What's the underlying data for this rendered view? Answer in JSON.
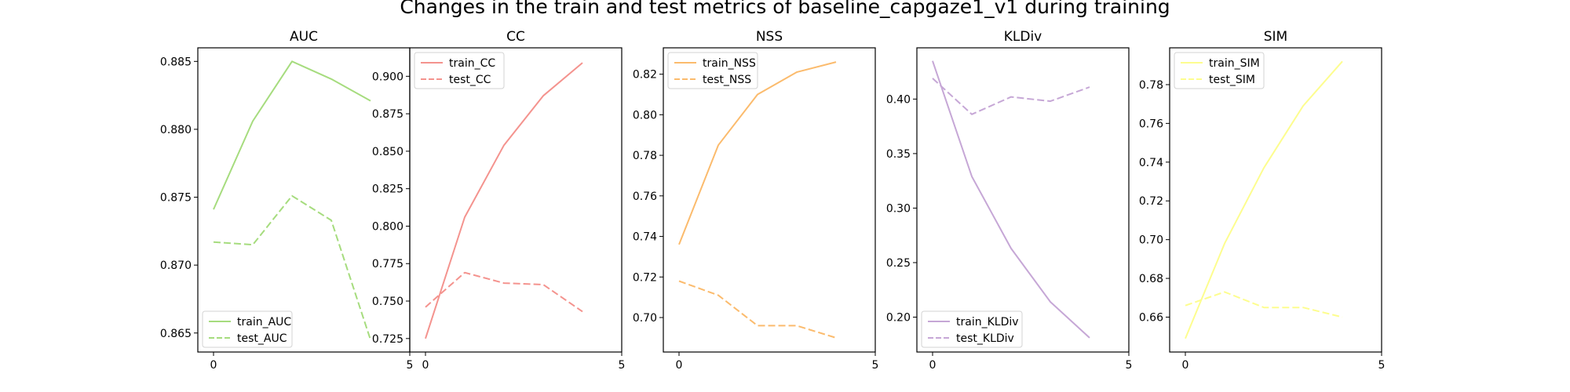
{
  "figure": {
    "title": "Changes in the train and test metrics of baseline_capgaze1_v1 during training"
  },
  "chart_data": [
    {
      "type": "line",
      "title": "AUC",
      "xlim": [
        -0.4,
        5
      ],
      "ylim": [
        0.8636,
        0.886
      ],
      "xticks": [
        0,
        5
      ],
      "yticks": [
        0.865,
        0.87,
        0.875,
        0.88,
        0.885
      ],
      "ytick_labels": [
        "0.865",
        "0.870",
        "0.875",
        "0.880",
        "0.885"
      ],
      "legend_position": "lower-left",
      "x": [
        0,
        1,
        2,
        3,
        4
      ],
      "series": [
        {
          "name": "train_AUC",
          "color": "#a6dc7e",
          "dash": "solid",
          "values": [
            0.8741,
            0.8806,
            0.885,
            0.8837,
            0.8821
          ]
        },
        {
          "name": "test_AUC",
          "color": "#a6dc7e",
          "dash": "dashed",
          "values": [
            0.8717,
            0.8715,
            0.8751,
            0.8733,
            0.8645
          ]
        }
      ]
    },
    {
      "type": "line",
      "title": "CC",
      "xlim": [
        -0.4,
        5
      ],
      "ylim": [
        0.716,
        0.919
      ],
      "xticks": [
        0,
        5
      ],
      "yticks": [
        0.725,
        0.75,
        0.775,
        0.8,
        0.825,
        0.85,
        0.875,
        0.9
      ],
      "ytick_labels": [
        "0.725",
        "0.750",
        "0.775",
        "0.800",
        "0.825",
        "0.850",
        "0.875",
        "0.900"
      ],
      "legend_position": "upper-left",
      "x": [
        0,
        1,
        2,
        3,
        4
      ],
      "series": [
        {
          "name": "train_CC",
          "color": "#f4938e",
          "dash": "solid",
          "values": [
            0.725,
            0.806,
            0.854,
            0.887,
            0.909
          ]
        },
        {
          "name": "test_CC",
          "color": "#f4938e",
          "dash": "dashed",
          "values": [
            0.746,
            0.769,
            0.762,
            0.761,
            0.743
          ]
        }
      ]
    },
    {
      "type": "line",
      "title": "NSS",
      "xlim": [
        -0.4,
        5
      ],
      "ylim": [
        0.683,
        0.833
      ],
      "xticks": [
        0,
        5
      ],
      "yticks": [
        0.7,
        0.72,
        0.74,
        0.76,
        0.78,
        0.8,
        0.82
      ],
      "ytick_labels": [
        "0.70",
        "0.72",
        "0.74",
        "0.76",
        "0.78",
        "0.80",
        "0.82"
      ],
      "legend_position": "upper-left",
      "x": [
        0,
        1,
        2,
        3,
        4
      ],
      "series": [
        {
          "name": "train_NSS",
          "color": "#fbbb6d",
          "dash": "solid",
          "values": [
            0.736,
            0.785,
            0.81,
            0.821,
            0.826
          ]
        },
        {
          "name": "test_NSS",
          "color": "#fbbb6d",
          "dash": "dashed",
          "values": [
            0.718,
            0.711,
            0.696,
            0.696,
            0.69
          ]
        }
      ]
    },
    {
      "type": "line",
      "title": "KLDiv",
      "xlim": [
        -0.4,
        5
      ],
      "ylim": [
        0.168,
        0.447
      ],
      "xticks": [
        0,
        5
      ],
      "yticks": [
        0.2,
        0.25,
        0.3,
        0.35,
        0.4
      ],
      "ytick_labels": [
        "0.20",
        "0.25",
        "0.30",
        "0.35",
        "0.40"
      ],
      "legend_position": "lower-left",
      "x": [
        0,
        1,
        2,
        3,
        4
      ],
      "series": [
        {
          "name": "train_KLDiv",
          "color": "#c6a7d6",
          "dash": "solid",
          "values": [
            0.435,
            0.329,
            0.263,
            0.214,
            0.181
          ]
        },
        {
          "name": "test_KLDiv",
          "color": "#c6a7d6",
          "dash": "dashed",
          "values": [
            0.419,
            0.386,
            0.402,
            0.398,
            0.411
          ]
        }
      ]
    },
    {
      "type": "line",
      "title": "SIM",
      "xlim": [
        -0.4,
        5
      ],
      "ylim": [
        0.642,
        0.799
      ],
      "xticks": [
        0,
        5
      ],
      "yticks": [
        0.66,
        0.68,
        0.7,
        0.72,
        0.74,
        0.76,
        0.78
      ],
      "ytick_labels": [
        "0.66",
        "0.68",
        "0.70",
        "0.72",
        "0.74",
        "0.76",
        "0.78"
      ],
      "legend_position": "upper-left",
      "x": [
        0,
        1,
        2,
        3,
        4
      ],
      "series": [
        {
          "name": "train_SIM",
          "color": "#fdfd8f",
          "dash": "solid",
          "values": [
            0.649,
            0.698,
            0.737,
            0.769,
            0.792
          ]
        },
        {
          "name": "test_SIM",
          "color": "#fdfd8f",
          "dash": "dashed",
          "values": [
            0.666,
            0.673,
            0.665,
            0.665,
            0.66
          ]
        }
      ]
    }
  ]
}
